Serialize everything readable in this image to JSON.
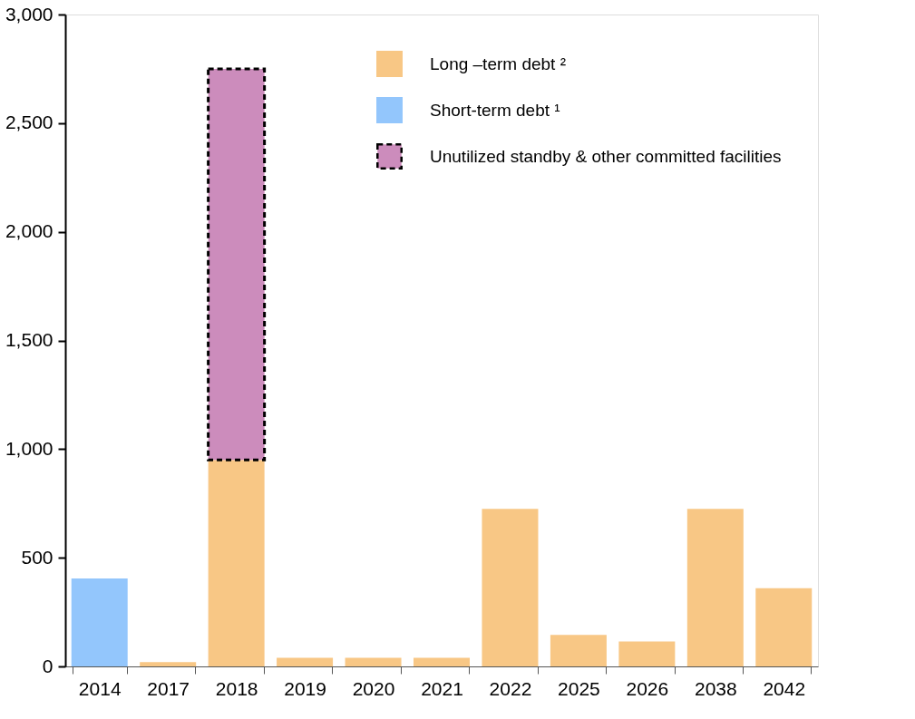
{
  "chart_data": {
    "type": "bar",
    "stacked": true,
    "categories": [
      "2014",
      "2017",
      "2018",
      "2019",
      "2020",
      "2021",
      "2022",
      "2025",
      "2026",
      "2038",
      "2042"
    ],
    "series": [
      {
        "name": "Long –term debt ²",
        "color": "#f8c785",
        "values": [
          null,
          20,
          950,
          40,
          40,
          40,
          725,
          145,
          115,
          725,
          360
        ]
      },
      {
        "name": "Short-term debt ¹",
        "color": "#93c6fc",
        "values": [
          405,
          null,
          null,
          null,
          null,
          null,
          null,
          null,
          null,
          null,
          null
        ]
      },
      {
        "name": "Unutilized standby & other committed facilities",
        "color": "#cc8cbc",
        "line_style": "dashed",
        "values": [
          null,
          null,
          1800,
          null,
          null,
          null,
          null,
          null,
          null,
          null,
          null
        ]
      }
    ],
    "ylim": [
      0,
      3000
    ],
    "yticks": [
      0,
      500,
      {
        "value": 1000,
        "label": "1,000"
      },
      {
        "value": 1500,
        "label": "1,500"
      },
      {
        "value": 2000,
        "label": "2,000"
      },
      {
        "value": 2500,
        "label": "2,500"
      },
      {
        "value": 3000,
        "label": "3,000"
      }
    ],
    "grid": false,
    "legend": "top right"
  }
}
